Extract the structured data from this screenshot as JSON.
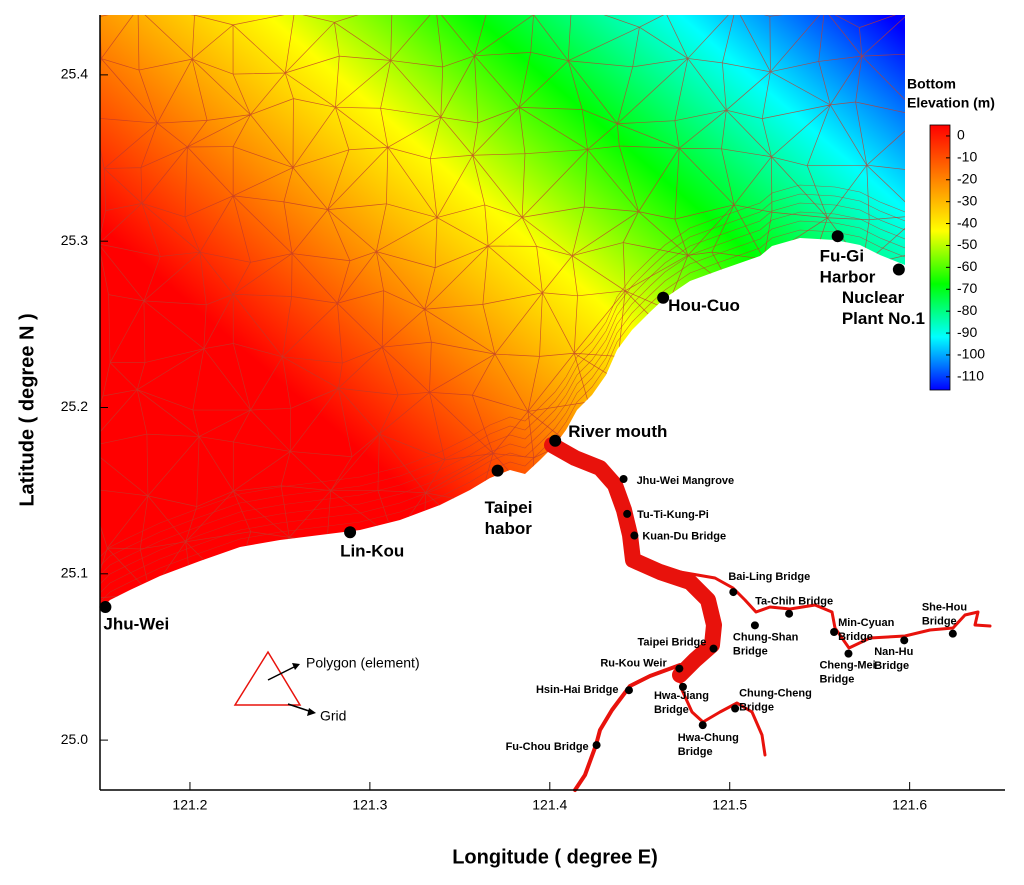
{
  "chart_data": {
    "type": "map",
    "xlabel": "Longitude ( degree E)",
    "ylabel": "Latitude ( degree N )",
    "xlim": [
      121.15,
      121.653
    ],
    "ylim": [
      24.97,
      25.436
    ],
    "xticks": [
      121.2,
      121.3,
      121.4,
      121.5,
      121.6
    ],
    "yticks": [
      {
        "value": 25.0,
        "label": "25.0"
      },
      25.1,
      25.2,
      25.3,
      25.4
    ],
    "colorbar_title": [
      "Bottom",
      "Elevation (m)"
    ],
    "clim": [
      -116,
      5
    ],
    "cticks": [
      0,
      -10,
      -20,
      -30,
      -40,
      -50,
      -60,
      -70,
      -80,
      -90,
      -100,
      -110
    ],
    "colormap": [
      "#0000ff",
      "#00ffff",
      "#00ff00",
      "#ffff00",
      "#ff8000",
      "#ff0000"
    ],
    "mesh_color": "#c0392b",
    "river_color": "#e8120c",
    "legend": {
      "element": "Polygon (element)",
      "grid": "Grid"
    },
    "places": [
      {
        "label": [
          "Jhu-Wei"
        ],
        "lon": 121.153,
        "lat": 25.08
      },
      {
        "label": [
          "Lin-Kou"
        ],
        "lon": 121.289,
        "lat": 25.125
      },
      {
        "label": [
          "Taipei",
          "habor"
        ],
        "lon": 121.371,
        "lat": 25.162
      },
      {
        "label": [
          "River mouth"
        ],
        "lon": 121.403,
        "lat": 25.18
      },
      {
        "label": [
          "Hou-Cuo"
        ],
        "lon": 121.463,
        "lat": 25.266
      },
      {
        "label": [
          "Fu-Gi",
          "Harbor"
        ],
        "lon": 121.56,
        "lat": 25.303
      },
      {
        "label": [
          "Nuclear",
          "Plant No.1"
        ],
        "lon": 121.594,
        "lat": 25.283
      }
    ],
    "stations": [
      {
        "label": [
          "Jhu-Wei Mangrove"
        ],
        "lon": 121.441,
        "lat": 25.157
      },
      {
        "label": [
          "Tu-Ti-Kung-Pi"
        ],
        "lon": 121.443,
        "lat": 25.136
      },
      {
        "label": [
          "Kuan-Du Bridge"
        ],
        "lon": 121.447,
        "lat": 25.123
      },
      {
        "label": [
          "Bai-Ling Bridge"
        ],
        "lon": 121.502,
        "lat": 25.089
      },
      {
        "label": [
          "Ta-Chih Bridge"
        ],
        "lon": 121.533,
        "lat": 25.076
      },
      {
        "label": [
          "Chung-Shan",
          "Bridge"
        ],
        "lon": 121.514,
        "lat": 25.069
      },
      {
        "label": [
          "Min-Cyuan",
          "Bridge"
        ],
        "lon": 121.558,
        "lat": 25.065
      },
      {
        "label": [
          "Cheng-Mei",
          "Bridge"
        ],
        "lon": 121.566,
        "lat": 25.052
      },
      {
        "label": [
          "Nan-Hu",
          "Bridge"
        ],
        "lon": 121.597,
        "lat": 25.06
      },
      {
        "label": [
          "She-Hou",
          "Bridge"
        ],
        "lon": 121.624,
        "lat": 25.064
      },
      {
        "label": [
          "Taipei Bridge"
        ],
        "lon": 121.491,
        "lat": 25.055
      },
      {
        "label": [
          "Ru-Kou Weir"
        ],
        "lon": 121.472,
        "lat": 25.043
      },
      {
        "label": [
          "Hsin-Hai Bridge"
        ],
        "lon": 121.444,
        "lat": 25.03
      },
      {
        "label": [
          "Hwa-Jiang",
          "Bridge"
        ],
        "lon": 121.474,
        "lat": 25.032
      },
      {
        "label": [
          "Chung-Cheng",
          "Bridge"
        ],
        "lon": 121.503,
        "lat": 25.019
      },
      {
        "label": [
          "Hwa-Chung",
          "Bridge"
        ],
        "lon": 121.485,
        "lat": 25.009
      },
      {
        "label": [
          "Fu-Chou Bridge"
        ],
        "lon": 121.426,
        "lat": 24.997
      }
    ]
  }
}
